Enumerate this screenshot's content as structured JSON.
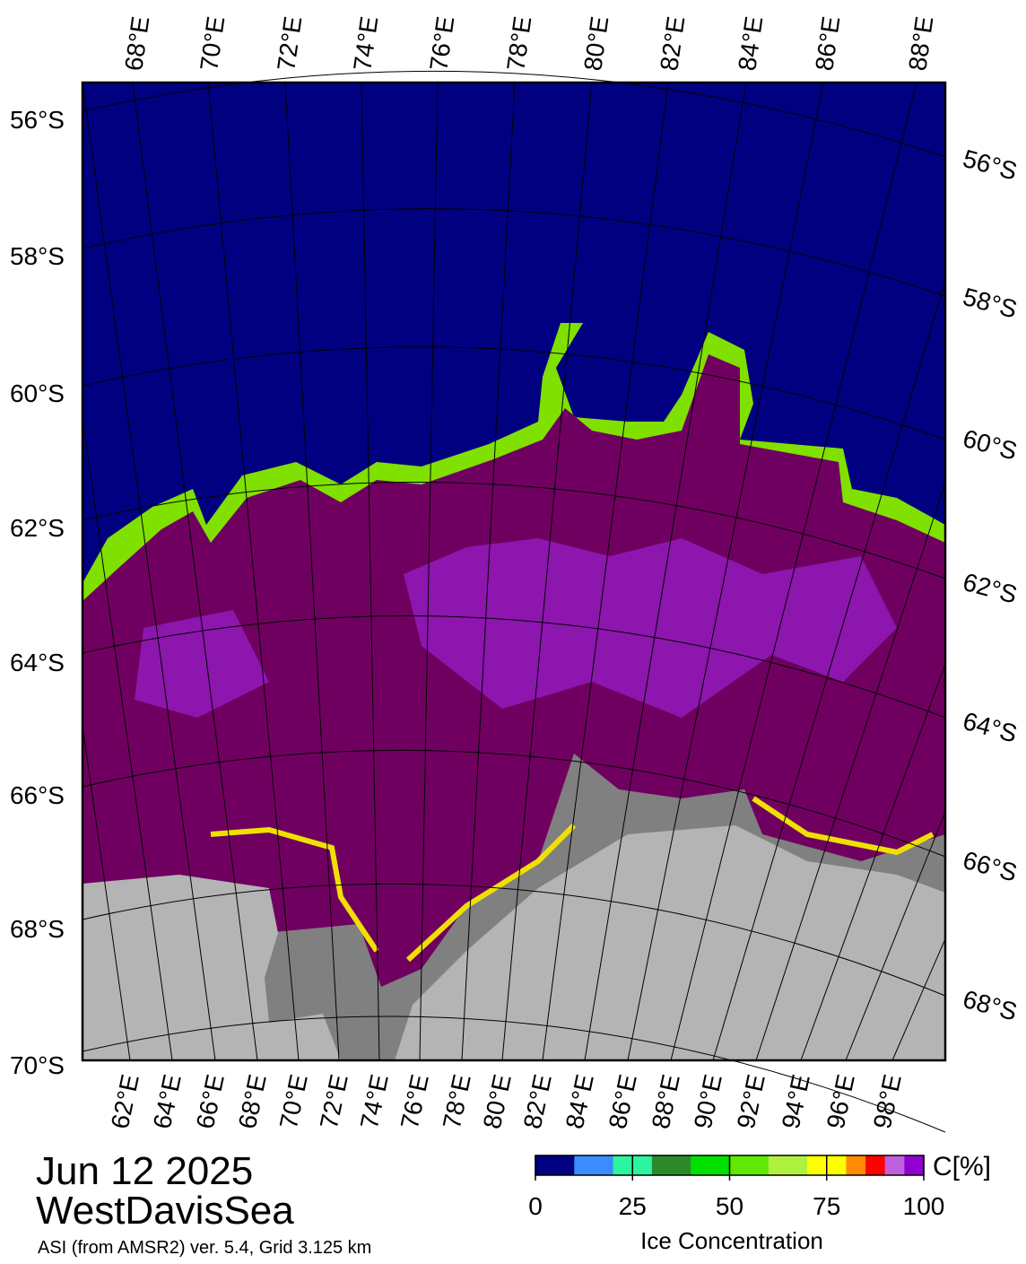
{
  "map": {
    "date": "Jun 12 2025",
    "region": "WestDavisSea",
    "source": "ASI (from AMSR2) ver. 5.4,  Grid 3.125 km",
    "top_lon_labels": [
      "68°E",
      "70°E",
      "72°E",
      "74°E",
      "76°E",
      "78°E",
      "80°E",
      "82°E",
      "84°E",
      "86°E",
      "88°E"
    ],
    "left_lat_labels": [
      "56°S",
      "58°S",
      "60°S",
      "62°S",
      "64°S",
      "66°S",
      "68°S",
      "70°S"
    ],
    "right_lat_labels": [
      "56°S",
      "58°S",
      "60°S",
      "62°S",
      "64°S",
      "66°S",
      "68°S"
    ],
    "bottom_lon_labels": [
      "62°E",
      "64°E",
      "66°E",
      "68°E",
      "70°E",
      "72°E",
      "74°E",
      "76°E",
      "78°E",
      "80°E",
      "82°E",
      "84°E",
      "86°E",
      "88°E",
      "90°E",
      "92°E",
      "94°E",
      "96°E",
      "98°E"
    ]
  },
  "colorbar": {
    "title": "Ice Concentration",
    "unit": "C[%]",
    "lim": [
      0,
      100
    ],
    "ticks": [
      0,
      25,
      50,
      75,
      100
    ],
    "colors": [
      "#000080",
      "#3a8cff",
      "#2cf5a0",
      "#2a8a2a",
      "#00e000",
      "#60e800",
      "#b0f040",
      "#ffff00",
      "#ff8c00",
      "#ff0000",
      "#c060e0",
      "#9000d0"
    ]
  }
}
